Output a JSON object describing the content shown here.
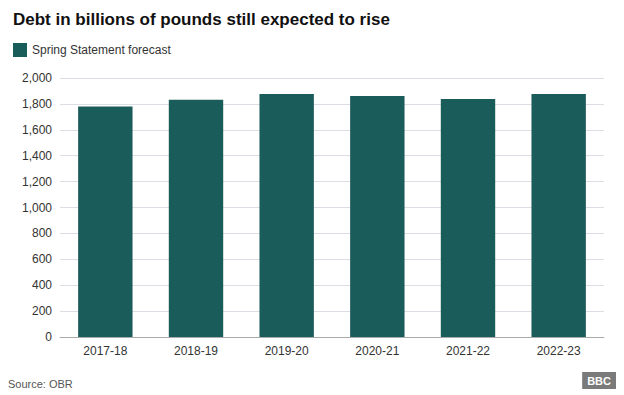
{
  "chart_data": {
    "type": "bar",
    "title": "Debt in billions of pounds still expected to rise",
    "categories": [
      "2017-18",
      "2018-19",
      "2019-20",
      "2020-21",
      "2021-22",
      "2022-23"
    ],
    "series": [
      {
        "name": "Spring Statement forecast",
        "color": "#1a5c5a",
        "values": [
          1780,
          1832,
          1876,
          1861,
          1838,
          1877
        ]
      }
    ],
    "ylim": [
      0,
      2000
    ],
    "yticks": [
      0,
      200,
      400,
      600,
      800,
      {
        "value": 1000,
        "label": "1,000"
      },
      {
        "value": 1200,
        "label": "1,200"
      },
      {
        "value": 1400,
        "label": "1,400"
      },
      {
        "value": 1600,
        "label": "1,600"
      },
      {
        "value": 1800,
        "label": "1,800"
      },
      {
        "value": 2000,
        "label": "2,000"
      }
    ],
    "grid": true,
    "legend": "top-left",
    "annotations": [
      "Source: OBR",
      "BBC"
    ]
  }
}
